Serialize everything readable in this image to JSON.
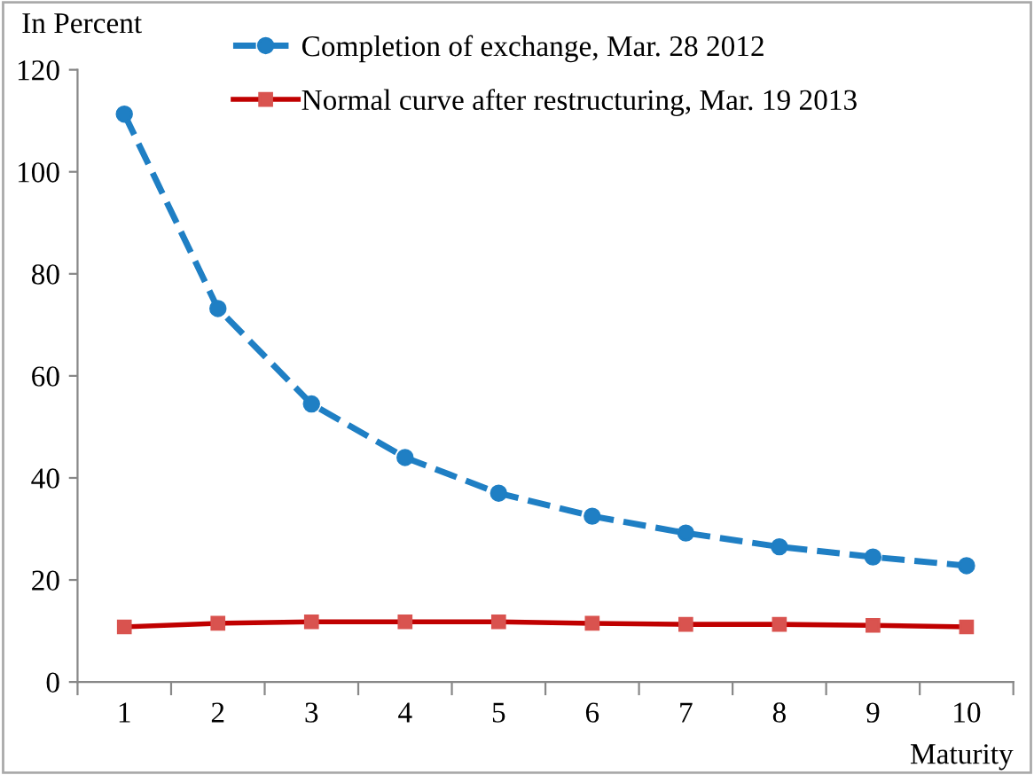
{
  "chart_data": {
    "type": "line",
    "ylabel": "In Percent",
    "xlabel": "Maturity",
    "categories": [
      "1",
      "2",
      "3",
      "4",
      "5",
      "6",
      "7",
      "8",
      "9",
      "10"
    ],
    "series": [
      {
        "name": "Completion of exchange, Mar. 28 2012",
        "color": "#1f7fc4",
        "marker": "circle",
        "line_style": "dashed",
        "values": [
          111.3,
          73.2,
          54.5,
          44,
          37,
          32.5,
          29.2,
          26.5,
          24.5,
          22.8
        ]
      },
      {
        "name": "Normal curve after restructuring, Mar. 19 2013",
        "color": "#c00000",
        "marker": "square",
        "line_style": "solid",
        "values": [
          10.8,
          11.5,
          11.8,
          11.8,
          11.8,
          11.5,
          11.3,
          11.3,
          11.1,
          10.8
        ]
      }
    ],
    "ylim": [
      0,
      120
    ],
    "yticks": [
      0,
      20,
      40,
      60,
      80,
      100,
      120
    ],
    "grid": false,
    "legend": "top"
  }
}
